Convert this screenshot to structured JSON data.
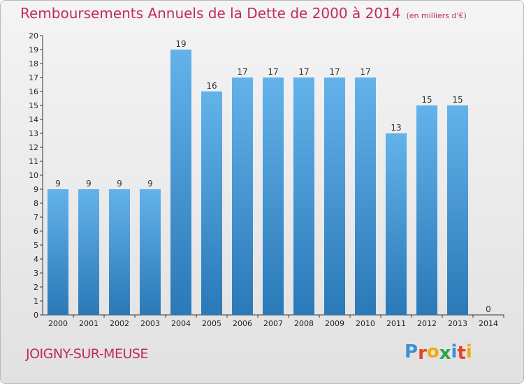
{
  "header": {
    "title": "Remboursements Annuels de la Dette de 2000 à 2014",
    "unit": "(en milliers d'€)"
  },
  "footer": {
    "commune": "JOIGNY-SUR-MEUSE",
    "logo_letters": [
      "P",
      "r",
      "o",
      "x",
      "i",
      "t",
      "i"
    ],
    "logo_colors": [
      "#3a8fd6",
      "#e0462c",
      "#f2a90c",
      "#2aa34a",
      "#3a8fd6",
      "#e0462c",
      "#f2a90c"
    ]
  },
  "colors": {
    "title": "#c02864",
    "bar_top": "#63b2ea",
    "bar_bottom": "#2a79b8"
  },
  "chart_data": {
    "type": "bar",
    "title": "Remboursements Annuels de la Dette de 2000 à 2014",
    "xlabel": "",
    "ylabel": "",
    "ylim": [
      0,
      20
    ],
    "yticks": [
      0,
      1,
      2,
      3,
      4,
      5,
      6,
      7,
      8,
      9,
      10,
      11,
      12,
      13,
      14,
      15,
      16,
      17,
      18,
      19,
      20
    ],
    "categories": [
      "2000",
      "2001",
      "2002",
      "2003",
      "2004",
      "2005",
      "2006",
      "2007",
      "2008",
      "2009",
      "2010",
      "2011",
      "2012",
      "2013",
      "2014"
    ],
    "values": [
      9,
      9,
      9,
      9,
      19,
      16,
      17,
      17,
      17,
      17,
      17,
      13,
      15,
      15,
      0
    ],
    "grid": false
  }
}
